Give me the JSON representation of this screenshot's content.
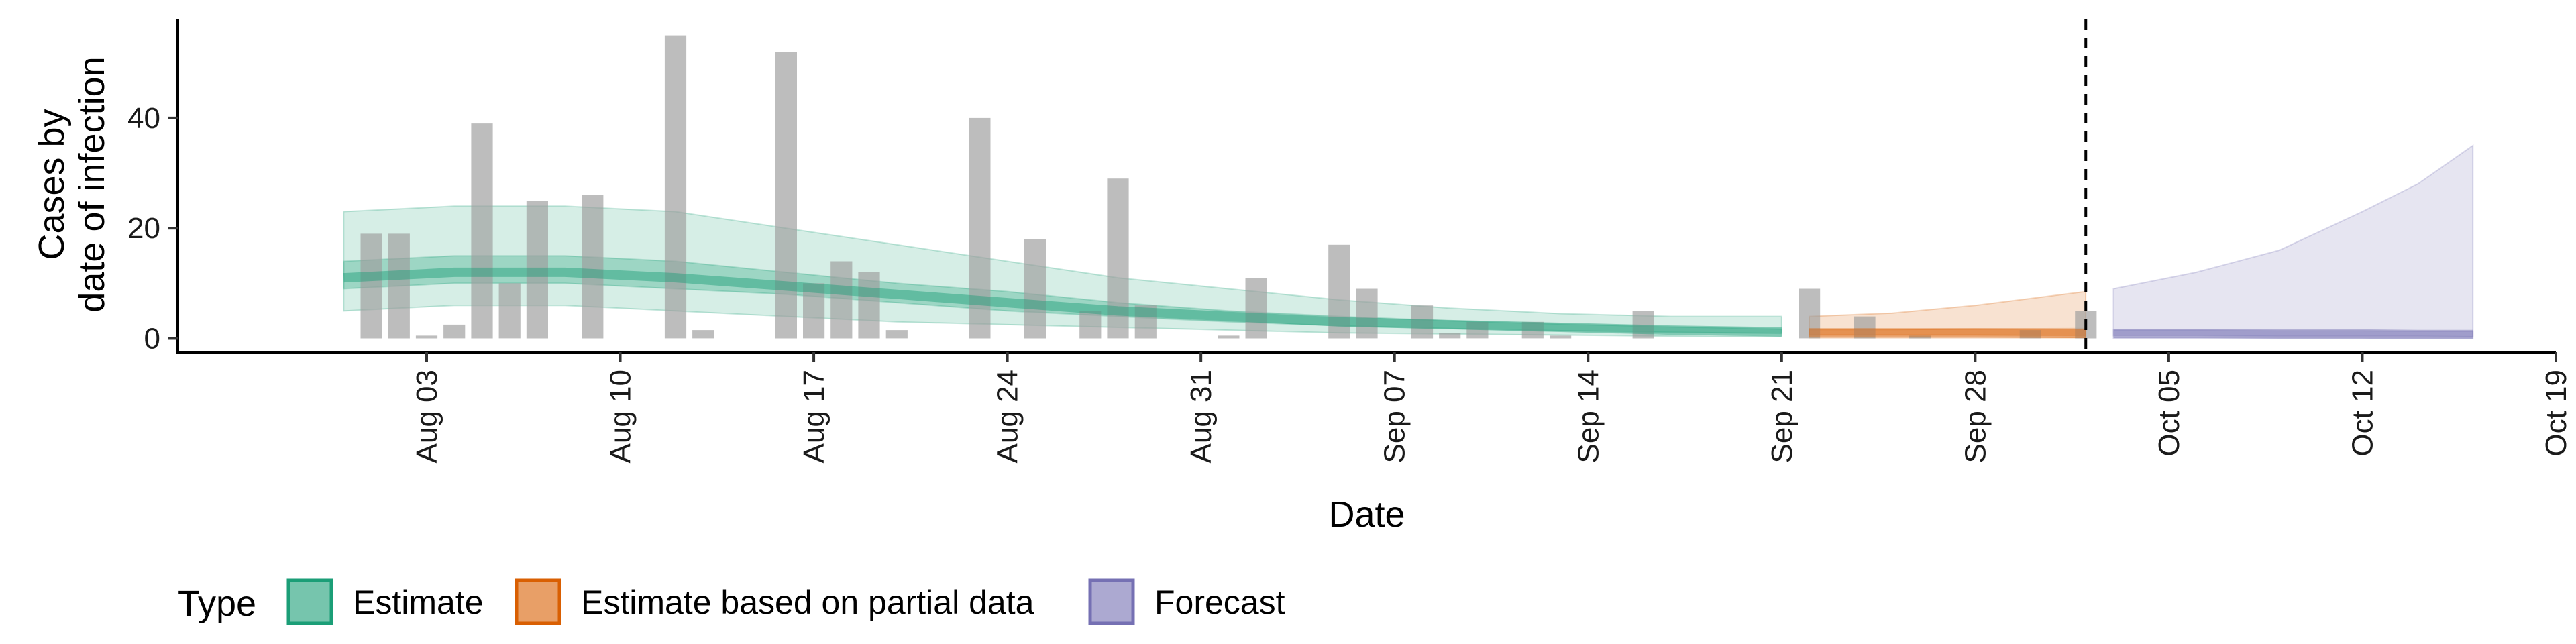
{
  "chart_data": {
    "type": "area",
    "xlabel": "Date",
    "ylabel_lines": [
      "Cases by",
      "date of infection"
    ],
    "x_range": [
      "2020-07-25",
      "2020-10-19"
    ],
    "ylim": [
      -2.5,
      58
    ],
    "y_ticks": [
      0,
      20,
      40
    ],
    "x_ticks": [
      {
        "date": "2020-08-03",
        "label": "Aug 03"
      },
      {
        "date": "2020-08-10",
        "label": "Aug 10"
      },
      {
        "date": "2020-08-17",
        "label": "Aug 17"
      },
      {
        "date": "2020-08-24",
        "label": "Aug 24"
      },
      {
        "date": "2020-08-31",
        "label": "Aug 31"
      },
      {
        "date": "2020-09-07",
        "label": "Sep 07"
      },
      {
        "date": "2020-09-14",
        "label": "Sep 14"
      },
      {
        "date": "2020-09-21",
        "label": "Sep 21"
      },
      {
        "date": "2020-09-28",
        "label": "Sep 28"
      },
      {
        "date": "2020-10-05",
        "label": "Oct 05"
      },
      {
        "date": "2020-10-12",
        "label": "Oct 12"
      },
      {
        "date": "2020-10-19",
        "label": "Oct 19"
      }
    ],
    "forecast_start_date": "2020-10-02",
    "bars": [
      {
        "date": "2020-08-01",
        "value": 19
      },
      {
        "date": "2020-08-02",
        "value": 19
      },
      {
        "date": "2020-08-03",
        "value": 0.5
      },
      {
        "date": "2020-08-04",
        "value": 2.5
      },
      {
        "date": "2020-08-05",
        "value": 39
      },
      {
        "date": "2020-08-06",
        "value": 10
      },
      {
        "date": "2020-08-07",
        "value": 25
      },
      {
        "date": "2020-08-09",
        "value": 26
      },
      {
        "date": "2020-08-12",
        "value": 55
      },
      {
        "date": "2020-08-13",
        "value": 1.5
      },
      {
        "date": "2020-08-16",
        "value": 52
      },
      {
        "date": "2020-08-17",
        "value": 10
      },
      {
        "date": "2020-08-18",
        "value": 14
      },
      {
        "date": "2020-08-19",
        "value": 12
      },
      {
        "date": "2020-08-20",
        "value": 1.5
      },
      {
        "date": "2020-08-23",
        "value": 40
      },
      {
        "date": "2020-08-25",
        "value": 18
      },
      {
        "date": "2020-08-27",
        "value": 5
      },
      {
        "date": "2020-08-28",
        "value": 29
      },
      {
        "date": "2020-08-29",
        "value": 6
      },
      {
        "date": "2020-09-01",
        "value": 0.5
      },
      {
        "date": "2020-09-02",
        "value": 11
      },
      {
        "date": "2020-09-05",
        "value": 17
      },
      {
        "date": "2020-09-06",
        "value": 9
      },
      {
        "date": "2020-09-08",
        "value": 6
      },
      {
        "date": "2020-09-09",
        "value": 1
      },
      {
        "date": "2020-09-10",
        "value": 3
      },
      {
        "date": "2020-09-12",
        "value": 3
      },
      {
        "date": "2020-09-13",
        "value": 0.5
      },
      {
        "date": "2020-09-16",
        "value": 5
      },
      {
        "date": "2020-09-22",
        "value": 9
      },
      {
        "date": "2020-09-24",
        "value": 4
      },
      {
        "date": "2020-09-26",
        "value": 0.5
      },
      {
        "date": "2020-09-30",
        "value": 1.5
      },
      {
        "date": "2020-10-02",
        "value": 5
      }
    ],
    "series": [
      {
        "name": "Estimate",
        "color": "#1b9e77",
        "dates": [
          "2020-07-31",
          "2020-08-04",
          "2020-08-08",
          "2020-08-12",
          "2020-08-16",
          "2020-08-20",
          "2020-08-24",
          "2020-08-28",
          "2020-09-01",
          "2020-09-05",
          "2020-09-09",
          "2020-09-13",
          "2020-09-17",
          "2020-09-21"
        ],
        "median": [
          11,
          12,
          12,
          11,
          9.5,
          8,
          6.5,
          5,
          4,
          3,
          2.5,
          2,
          1.5,
          1.2
        ],
        "lower_50": [
          9,
          10,
          10,
          9,
          8,
          6.5,
          5,
          4,
          3,
          2.3,
          1.8,
          1.4,
          1.1,
          0.9
        ],
        "upper_50": [
          14,
          15,
          15,
          14,
          12,
          10,
          8.5,
          6.5,
          5,
          4,
          3.2,
          2.6,
          2.1,
          1.7
        ],
        "lower_90": [
          5,
          6,
          6,
          5,
          4,
          3,
          2.5,
          2,
          1.5,
          1,
          0.8,
          0.6,
          0.4,
          0.3
        ],
        "upper_90": [
          23,
          24,
          24,
          23,
          20,
          17,
          14,
          11,
          9,
          7,
          5.5,
          4.5,
          4,
          4
        ]
      },
      {
        "name": "Estimate based on partial data",
        "color": "#d95f02",
        "dates": [
          "2020-09-22",
          "2020-09-25",
          "2020-09-28",
          "2020-10-02"
        ],
        "median": [
          1,
          1,
          1,
          0.9
        ],
        "lower_50": [
          0.6,
          0.6,
          0.6,
          0.5
        ],
        "upper_50": [
          1.6,
          1.6,
          1.7,
          1.8
        ],
        "lower_90": [
          0.1,
          0.1,
          0.1,
          0.1
        ],
        "upper_90": [
          4,
          4.6,
          6,
          8.5
        ]
      },
      {
        "name": "Forecast",
        "color": "#7570b3",
        "dates": [
          "2020-10-03",
          "2020-10-06",
          "2020-10-09",
          "2020-10-12",
          "2020-10-14",
          "2020-10-16"
        ],
        "median": [
          0.9,
          0.9,
          0.8,
          0.8,
          0.7,
          0.7
        ],
        "lower_50": [
          0.5,
          0.5,
          0.4,
          0.4,
          0.4,
          0.3
        ],
        "upper_50": [
          1.5,
          1.5,
          1.4,
          1.4,
          1.3,
          1.3
        ],
        "lower_90": [
          0.05,
          0.05,
          0.05,
          0.05,
          0.05,
          0.05
        ],
        "upper_90": [
          9,
          12,
          16,
          23,
          28,
          35
        ]
      }
    ],
    "legend": {
      "title": "Type",
      "position": "bottom-left",
      "items": [
        "Estimate",
        "Estimate based on partial data",
        "Forecast"
      ]
    }
  }
}
